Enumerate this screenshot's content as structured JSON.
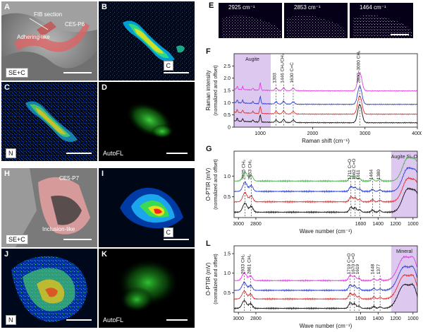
{
  "panels": {
    "A": {
      "letter": "A",
      "mode": "SE+C",
      "labels": [
        "FIB section",
        "CE5-P6",
        "Adhering-like"
      ]
    },
    "B": {
      "letter": "B",
      "channel": "C"
    },
    "C": {
      "letter": "C",
      "channel": "N"
    },
    "D": {
      "letter": "D",
      "channel": "AutoFL"
    },
    "E": {
      "letter": "E",
      "maps": [
        "2925 cm⁻¹",
        "2853 cm⁻¹",
        "1464 cm⁻¹"
      ]
    },
    "H": {
      "letter": "H",
      "mode": "SE+C",
      "labels": [
        "CE5-P7",
        "Inclusion-like"
      ]
    },
    "I": {
      "letter": "I",
      "channel": "C"
    },
    "J": {
      "letter": "J",
      "channel": "N"
    },
    "K": {
      "letter": "K",
      "channel": "AutoFL"
    }
  },
  "chart_data": [
    {
      "id": "F",
      "letter": "F",
      "type": "line",
      "xlabel": "Raman shift (cm⁻¹)",
      "ylabel": "Raman intensity",
      "ylabel2": "(normalized and offset)",
      "xlim": [
        500,
        4000
      ],
      "ylim": [
        0,
        3.0
      ],
      "xticks": [
        1000,
        2000,
        3000,
        4000
      ],
      "yticks": [
        0,
        0.5,
        1.0,
        1.5,
        2.0,
        2.5
      ],
      "region": {
        "label": "Augite",
        "x": [
          500,
          1200
        ]
      },
      "peaks": [
        {
          "x": 1303,
          "label": "1303"
        },
        {
          "x": 1446,
          "label": "1446 CH₂/CH₃"
        },
        {
          "x": 1630,
          "label": "1630 C=C"
        },
        {
          "x": 2900,
          "label": "2800–3000 CHₓ"
        }
      ],
      "series": [
        {
          "color": "#e23ce2",
          "offset": 1.3
        },
        {
          "color": "#2b3fd1",
          "offset": 0.75
        },
        {
          "color": "#e03030",
          "offset": 0.35
        },
        {
          "color": "#111111",
          "offset": 0.0
        }
      ]
    },
    {
      "id": "G",
      "letter": "G",
      "type": "line",
      "xlabel": "Wave number (cm⁻¹)",
      "ylabel": "O-PTIR (mV)",
      "ylabel2": "(normalized and offset)",
      "xlim": [
        3050,
        950
      ],
      "ylim": [
        0,
        1.6
      ],
      "xticks": [
        3000,
        2800,
        1600,
        1400,
        1200,
        1000
      ],
      "yticks": [
        0.5,
        1.0
      ],
      "region": {
        "label": "Augite Si–O",
        "x": [
          1250,
          950
        ]
      },
      "peaks": [
        {
          "x": 2925,
          "label": "2925 CH₂"
        },
        {
          "x": 2853,
          "label": "2853 CH₂"
        },
        {
          "x": 1711,
          "label": "1711 C=O"
        },
        {
          "x": 1662,
          "label": "1662 C=O"
        },
        {
          "x": 1611,
          "label": "1611"
        },
        {
          "x": 1464,
          "label": "1464"
        },
        {
          "x": 1380,
          "label": "1380"
        }
      ],
      "series": [
        {
          "color": "#4caf50",
          "offset": 0.8
        },
        {
          "color": "#2b3fd1",
          "offset": 0.55
        },
        {
          "color": "#e03030",
          "offset": 0.3
        },
        {
          "color": "#111111",
          "offset": 0.05
        }
      ]
    },
    {
      "id": "L",
      "letter": "L",
      "type": "line",
      "xlabel": "Wave number (cm⁻¹)",
      "ylabel": "O-PTIR (mV)",
      "ylabel2": "(normalized and offset)",
      "xlim": [
        3050,
        950
      ],
      "ylim": [
        0,
        1.7
      ],
      "xticks": [
        3000,
        2800,
        1600,
        1400,
        1200,
        1000
      ],
      "yticks": [
        0.5,
        1.0,
        1.5
      ],
      "region": {
        "label": "Mineral",
        "x": [
          1250,
          950
        ]
      },
      "peaks": [
        {
          "x": 2933,
          "label": "2933 CH₂"
        },
        {
          "x": 2861,
          "label": "2861 CH₂"
        },
        {
          "x": 1719,
          "label": "1719 C=O"
        },
        {
          "x": 1670,
          "label": "1670 C=O"
        },
        {
          "x": 1619,
          "label": "1619"
        },
        {
          "x": 1448,
          "label": "1448"
        },
        {
          "x": 1377,
          "label": "1377"
        }
      ],
      "series": [
        {
          "color": "#e23ce2",
          "offset": 0.75
        },
        {
          "color": "#2b3fd1",
          "offset": 0.5
        },
        {
          "color": "#e03030",
          "offset": 0.28
        },
        {
          "color": "#111111",
          "offset": 0.04
        }
      ]
    }
  ]
}
